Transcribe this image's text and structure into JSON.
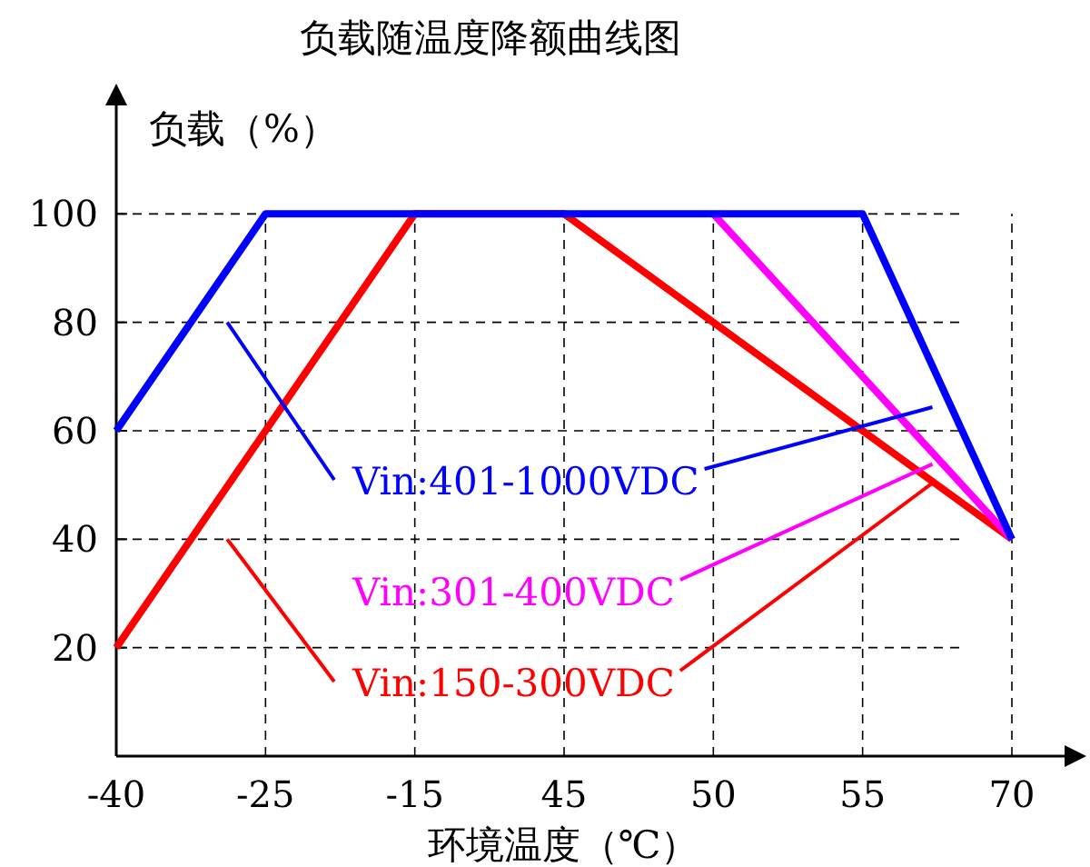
{
  "chart_data": {
    "type": "line",
    "title": "负载随温度降额曲线图",
    "ylabel": "负载（%）",
    "xlabel": "环境温度（℃）",
    "categories": [
      "-40",
      "-25",
      "-15",
      "45",
      "50",
      "55",
      "70"
    ],
    "ylim": [
      0,
      120
    ],
    "yticks": [
      20,
      40,
      60,
      80,
      100
    ],
    "grid": true,
    "line_style": "solid",
    "marker": "none",
    "series": [
      {
        "name": "Vin:401-1000VDC",
        "color": "#0000ff",
        "values": [
          60,
          100,
          100,
          100,
          100,
          100,
          40
        ]
      },
      {
        "name": "Vin:301-400VDC",
        "color": "#ff00ff",
        "values": [
          null,
          null,
          null,
          null,
          100,
          70,
          40
        ]
      },
      {
        "name": "Vin:150-300VDC",
        "color": "#ff0000",
        "values": [
          20,
          60,
          100,
          100,
          80,
          60,
          40
        ]
      }
    ]
  }
}
